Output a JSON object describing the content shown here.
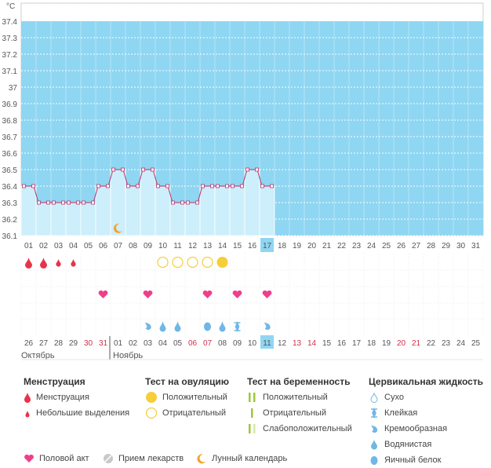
{
  "chart": {
    "unit": "°C",
    "y_ticks": [
      "37.4",
      "37.3",
      "37.2",
      "37.1",
      "37",
      "36.9",
      "36.8",
      "36.7",
      "36.6",
      "36.5",
      "36.4",
      "36.3",
      "36.2",
      "36.1"
    ],
    "day_labels_top": [
      "01",
      "02",
      "03",
      "04",
      "05",
      "06",
      "07",
      "08",
      "09",
      "10",
      "11",
      "12",
      "13",
      "14",
      "15",
      "16",
      "17",
      "18",
      "19",
      "20",
      "21",
      "22",
      "23",
      "24",
      "25",
      "26",
      "27",
      "28",
      "29",
      "30",
      "31"
    ],
    "current_day_index": 16,
    "temperatures": [
      36.4,
      36.3,
      36.3,
      36.3,
      36.3,
      36.4,
      36.5,
      36.4,
      36.5,
      36.4,
      36.3,
      36.3,
      36.4,
      36.4,
      36.4,
      36.5,
      36.4
    ],
    "bottom_dates": [
      {
        "t": "26",
        "red": false
      },
      {
        "t": "27",
        "red": false
      },
      {
        "t": "28",
        "red": false
      },
      {
        "t": "29",
        "red": false
      },
      {
        "t": "30",
        "red": true
      },
      {
        "t": "31",
        "red": true
      },
      {
        "t": "01",
        "red": false
      },
      {
        "t": "02",
        "red": false
      },
      {
        "t": "03",
        "red": false
      },
      {
        "t": "04",
        "red": false
      },
      {
        "t": "05",
        "red": false
      },
      {
        "t": "06",
        "red": true
      },
      {
        "t": "07",
        "red": true
      },
      {
        "t": "08",
        "red": false
      },
      {
        "t": "09",
        "red": false
      },
      {
        "t": "10",
        "red": false
      },
      {
        "t": "11",
        "red": false
      },
      {
        "t": "12",
        "red": false
      },
      {
        "t": "13",
        "red": true
      },
      {
        "t": "14",
        "red": true
      },
      {
        "t": "15",
        "red": false
      },
      {
        "t": "16",
        "red": false
      },
      {
        "t": "17",
        "red": false
      },
      {
        "t": "18",
        "red": false
      },
      {
        "t": "19",
        "red": false
      },
      {
        "t": "20",
        "red": true
      },
      {
        "t": "21",
        "red": true
      },
      {
        "t": "22",
        "red": false
      },
      {
        "t": "23",
        "red": false
      },
      {
        "t": "24",
        "red": false
      },
      {
        "t": "25",
        "red": false
      }
    ],
    "month_left": "Октябрь",
    "month_right": "Ноябрь",
    "menstruation": [
      {
        "day": 0,
        "kind": "heavy"
      },
      {
        "day": 1,
        "kind": "heavy"
      },
      {
        "day": 2,
        "kind": "light"
      },
      {
        "day": 3,
        "kind": "light"
      }
    ],
    "ovulation": [
      {
        "day": 9,
        "kind": "negative"
      },
      {
        "day": 10,
        "kind": "negative"
      },
      {
        "day": 11,
        "kind": "negative"
      },
      {
        "day": 12,
        "kind": "negative"
      },
      {
        "day": 13,
        "kind": "positive"
      }
    ],
    "intercourse_days": [
      5,
      8,
      12,
      14,
      16
    ],
    "fluid": [
      {
        "day": 8,
        "kind": "creamy"
      },
      {
        "day": 9,
        "kind": "watery"
      },
      {
        "day": 10,
        "kind": "watery"
      },
      {
        "day": 12,
        "kind": "eggwhite"
      },
      {
        "day": 13,
        "kind": "watery"
      },
      {
        "day": 14,
        "kind": "sticky"
      },
      {
        "day": 16,
        "kind": "creamy"
      }
    ],
    "moon_day": 6,
    "colors": {
      "fill": "#8fd6f2",
      "bar": "#cdeefb",
      "line": "#c0306a",
      "red": "#e8344b",
      "yellow": "#f6ce3a",
      "pink": "#ef3f8a",
      "blue": "#6fb7e6",
      "green": "#9cc83a"
    }
  },
  "legend": {
    "menstruation": {
      "title": "Менструация",
      "items": [
        "Менструация",
        "Небольшие выделения"
      ]
    },
    "ovulation": {
      "title": "Тест на овуляцию",
      "items": [
        "Положительный",
        "Отрицательный"
      ]
    },
    "pregnancy": {
      "title": "Тест на беременность",
      "items": [
        "Положительный",
        "Отрицательный",
        "Слабоположительный"
      ]
    },
    "fluid": {
      "title": "Цервикальная жидкость",
      "items": [
        "Сухо",
        "Клейкая",
        "Кремообразная",
        "Водянистая",
        "Яичный белок"
      ]
    },
    "bottom": {
      "intercourse": "Половой акт",
      "medicine": "Прием лекарств",
      "moon": "Лунный календарь"
    }
  }
}
